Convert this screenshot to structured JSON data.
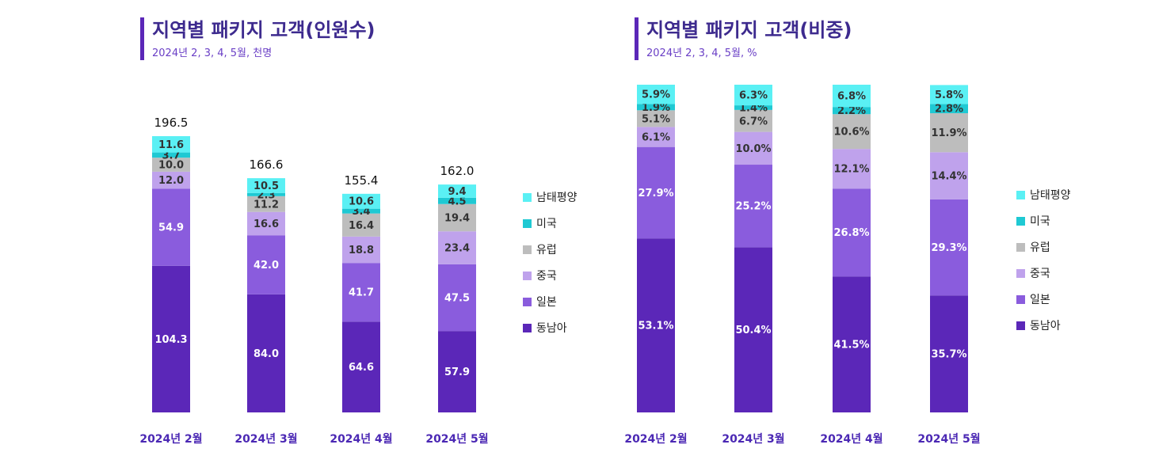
{
  "colors": {
    "동남아": "#5b27b8",
    "일본": "#8a5cdd",
    "중국": "#bfa2ec",
    "유럽": "#bdbdbd",
    "미국": "#1fc9d3",
    "남태평양": "#5af0f4",
    "accent": "#5b27b8"
  },
  "chart_data": [
    {
      "type": "bar",
      "stacked": true,
      "title": "지역별 패키지 고객(인원수)",
      "subtitle": "2024년 2, 3, 4, 5월, 천명",
      "categories": [
        "2024년 2월",
        "2024년 3월",
        "2024년 4월",
        "2024년 5월"
      ],
      "totals": [
        "196.5",
        "166.6",
        "155.4",
        "162.0"
      ],
      "ylim": [
        0,
        196.5
      ],
      "legend": [
        "남태평양",
        "미국",
        "유럽",
        "중국",
        "일본",
        "동남아"
      ],
      "legend_position": "right",
      "grid": false,
      "series": [
        {
          "name": "동남아",
          "values": [
            104.3,
            84.0,
            64.6,
            57.9
          ],
          "labels": [
            "104.3",
            "84.0",
            "64.6",
            "57.9"
          ]
        },
        {
          "name": "일본",
          "values": [
            54.9,
            42.0,
            41.7,
            47.5
          ],
          "labels": [
            "54.9",
            "42.0",
            "41.7",
            "47.5"
          ]
        },
        {
          "name": "중국",
          "values": [
            12.0,
            16.6,
            18.8,
            23.4
          ],
          "labels": [
            "12.0",
            "16.6",
            "18.8",
            "23.4"
          ]
        },
        {
          "name": "유럽",
          "values": [
            10.0,
            11.2,
            16.4,
            19.4
          ],
          "labels": [
            "10.0",
            "11.2",
            "16.4",
            "19.4"
          ]
        },
        {
          "name": "미국",
          "values": [
            3.7,
            2.3,
            3.4,
            4.5
          ],
          "labels": [
            "3.7",
            "2.3",
            "3.4",
            "4.5"
          ]
        },
        {
          "name": "남태평양",
          "values": [
            11.6,
            10.5,
            10.6,
            9.4
          ],
          "labels": [
            "11.6",
            "10.5",
            "10.6",
            "9.4"
          ]
        }
      ]
    },
    {
      "type": "bar",
      "stacked": true,
      "title": "지역별 패키지 고객(비중)",
      "subtitle": "2024년 2, 3, 4, 5월, %",
      "categories": [
        "2024년 2월",
        "2024년 3월",
        "2024년 4월",
        "2024년 5월"
      ],
      "ylim": [
        0,
        100
      ],
      "legend": [
        "남태평양",
        "미국",
        "유럽",
        "중국",
        "일본",
        "동남아"
      ],
      "legend_position": "right",
      "grid": false,
      "series": [
        {
          "name": "동남아",
          "values": [
            53.1,
            50.4,
            41.5,
            35.7
          ],
          "labels": [
            "53.1%",
            "50.4%",
            "41.5%",
            "35.7%"
          ]
        },
        {
          "name": "일본",
          "values": [
            27.9,
            25.2,
            26.8,
            29.3
          ],
          "labels": [
            "27.9%",
            "25.2%",
            "26.8%",
            "29.3%"
          ]
        },
        {
          "name": "중국",
          "values": [
            6.1,
            10.0,
            12.1,
            14.4
          ],
          "labels": [
            "6.1%",
            "10.0%",
            "12.1%",
            "14.4%"
          ]
        },
        {
          "name": "유럽",
          "values": [
            5.1,
            6.7,
            10.6,
            11.9
          ],
          "labels": [
            "5.1%",
            "6.7%",
            "10.6%",
            "11.9%"
          ]
        },
        {
          "name": "미국",
          "values": [
            1.9,
            1.4,
            2.2,
            2.8
          ],
          "labels": [
            "1.9%",
            "1.4%",
            "2.2%",
            "2.8%"
          ]
        },
        {
          "name": "남태평양",
          "values": [
            5.9,
            6.3,
            6.8,
            5.8
          ],
          "labels": [
            "5.9%",
            "6.3%",
            "6.8%",
            "5.8%"
          ]
        }
      ]
    }
  ]
}
